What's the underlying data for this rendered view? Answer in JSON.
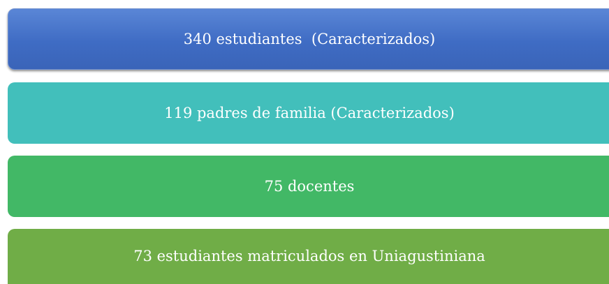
{
  "items": [
    {
      "label": "340 estudiantes  (Caracterizados)"
    },
    {
      "label": "119 padres de familia (Caracterizados)"
    },
    {
      "label": "75 docentes"
    },
    {
      "label": "73 estudiantes matriculados en Uniagustiniana"
    }
  ]
}
